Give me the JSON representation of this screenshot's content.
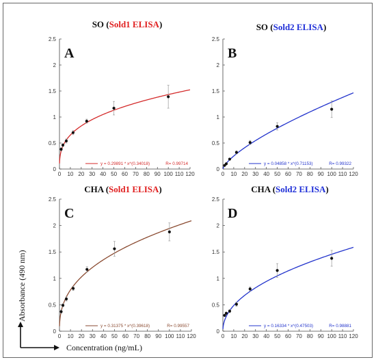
{
  "chart_data": [
    {
      "type": "scatter",
      "panel": "A",
      "title": "SO (Sold1 ELISA)",
      "title_prefix": "SO (",
      "title_highlight": "Sold1 ELISA",
      "title_suffix": ")",
      "highlight_color": "#e02020",
      "curve_color": "#d42a2a",
      "equation": "y = 0.29891 * x^(0.34018)",
      "r_label": "R= 0.99714",
      "fit": {
        "a": 0.29891,
        "b": 0.34018
      },
      "xlim": [
        0,
        120
      ],
      "ylim": [
        0,
        2.5
      ],
      "xticks": [
        0,
        10,
        20,
        30,
        40,
        50,
        60,
        70,
        80,
        90,
        100,
        110,
        120
      ],
      "yticks": [
        0,
        0.5,
        1,
        1.5,
        2,
        2.5
      ],
      "ytick_labels": [
        "0",
        "0.5",
        "1",
        "1.5",
        "2",
        "2.5"
      ],
      "points": [
        {
          "x": 1.56,
          "y": 0.38,
          "err": 0.03
        },
        {
          "x": 3.13,
          "y": 0.46,
          "err": 0.03
        },
        {
          "x": 6.25,
          "y": 0.54,
          "err": 0.04
        },
        {
          "x": 12.5,
          "y": 0.7,
          "err": 0.04
        },
        {
          "x": 25,
          "y": 0.92,
          "err": 0.04
        },
        {
          "x": 50,
          "y": 1.17,
          "err": 0.13
        },
        {
          "x": 100,
          "y": 1.39,
          "err": 0.22
        }
      ]
    },
    {
      "type": "scatter",
      "panel": "B",
      "title": "SO (Sold2 ELISA)",
      "title_prefix": "SO (",
      "title_highlight": "Sold2 ELISA",
      "title_suffix": ")",
      "highlight_color": "#2030d8",
      "curve_color": "#2233cc",
      "equation": "y = 0.04858 * x^(0.71153)",
      "r_label": "R= 0.99322",
      "fit": {
        "a": 0.04858,
        "b": 0.71153
      },
      "xlim": [
        0,
        120
      ],
      "ylim": [
        0,
        2.5
      ],
      "xticks": [
        0,
        10,
        20,
        30,
        40,
        50,
        60,
        70,
        80,
        90,
        100,
        110,
        120
      ],
      "yticks": [
        0,
        0.5,
        1,
        1.5,
        2,
        2.5
      ],
      "ytick_labels": [
        "0",
        "0.5",
        "1",
        "1.5",
        "2",
        "2.5"
      ],
      "points": [
        {
          "x": 1.56,
          "y": 0.07,
          "err": 0.01
        },
        {
          "x": 3.13,
          "y": 0.1,
          "err": 0.01
        },
        {
          "x": 6.25,
          "y": 0.19,
          "err": 0.02
        },
        {
          "x": 12.5,
          "y": 0.32,
          "err": 0.03
        },
        {
          "x": 25,
          "y": 0.51,
          "err": 0.04
        },
        {
          "x": 50,
          "y": 0.82,
          "err": 0.07
        },
        {
          "x": 100,
          "y": 1.15,
          "err": 0.16
        }
      ]
    },
    {
      "type": "scatter",
      "panel": "C",
      "title": "CHA (Sold1 ELISA)",
      "title_prefix": "CHA (",
      "title_highlight": "Sold1 ELISA",
      "title_suffix": ")",
      "highlight_color": "#e02020",
      "curve_color": "#8a4a30",
      "equation": "y = 0.31375 * x^(0.39618)",
      "r_label": "R= 0.99557",
      "fit": {
        "a": 0.31375,
        "b": 0.39618
      },
      "xlim": [
        0,
        120
      ],
      "ylim": [
        0,
        2.5
      ],
      "xticks": [
        0,
        10,
        20,
        30,
        40,
        50,
        60,
        70,
        80,
        90,
        100,
        110,
        120
      ],
      "yticks": [
        0,
        0.5,
        1,
        1.5,
        2,
        2.5
      ],
      "ytick_labels": [
        "0",
        "0.5",
        "1",
        "1.5",
        "2",
        "2.5"
      ],
      "points": [
        {
          "x": 1.56,
          "y": 0.37,
          "err": 0.03
        },
        {
          "x": 3.13,
          "y": 0.49,
          "err": 0.03
        },
        {
          "x": 6.25,
          "y": 0.61,
          "err": 0.04
        },
        {
          "x": 12.5,
          "y": 0.81,
          "err": 0.04
        },
        {
          "x": 25,
          "y": 1.17,
          "err": 0.05
        },
        {
          "x": 50,
          "y": 1.56,
          "err": 0.14
        },
        {
          "x": 100,
          "y": 1.88,
          "err": 0.17
        }
      ]
    },
    {
      "type": "scatter",
      "panel": "D",
      "title": "CHA (Sold2 ELISA)",
      "title_prefix": "CHA (",
      "title_highlight": "Sold2 ELISA",
      "title_suffix": ")",
      "highlight_color": "#2030d8",
      "curve_color": "#2233cc",
      "equation": "y = 0.16334 * x^(0.47503)",
      "r_label": "R= 0.98881",
      "fit": {
        "a": 0.16334,
        "b": 0.47503
      },
      "xlim": [
        0,
        120
      ],
      "ylim": [
        0,
        2.5
      ],
      "xticks": [
        0,
        10,
        20,
        30,
        40,
        50,
        60,
        70,
        80,
        90,
        100,
        110,
        120
      ],
      "yticks": [
        0,
        0.5,
        1,
        1.5,
        2,
        2.5
      ],
      "ytick_labels": [
        "0",
        "0.5",
        "1",
        "1.5",
        "2",
        "2.5"
      ],
      "points": [
        {
          "x": 1.56,
          "y": 0.3,
          "err": 0.02
        },
        {
          "x": 3.13,
          "y": 0.34,
          "err": 0.02
        },
        {
          "x": 6.25,
          "y": 0.38,
          "err": 0.03
        },
        {
          "x": 12.5,
          "y": 0.51,
          "err": 0.04
        },
        {
          "x": 25,
          "y": 0.8,
          "err": 0.04
        },
        {
          "x": 50,
          "y": 1.15,
          "err": 0.13
        },
        {
          "x": 100,
          "y": 1.38,
          "err": 0.15
        }
      ]
    }
  ],
  "shared_axes": {
    "ylabel": "Absorbance  (490 nm)",
    "xlabel": "Concentration   (ng/mL)"
  }
}
